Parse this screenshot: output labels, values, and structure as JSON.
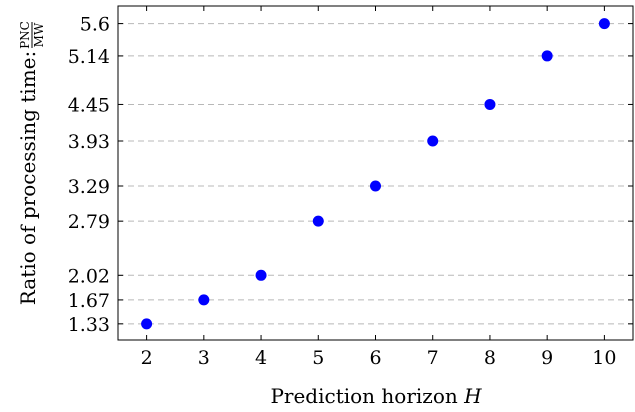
{
  "chart_data": {
    "type": "scatter",
    "x": [
      2,
      3,
      4,
      5,
      6,
      7,
      8,
      9,
      10
    ],
    "y": [
      1.33,
      1.67,
      2.02,
      2.79,
      3.29,
      3.93,
      4.45,
      5.14,
      5.6
    ],
    "xticks": [
      "2",
      "3",
      "4",
      "5",
      "6",
      "7",
      "8",
      "9",
      "10"
    ],
    "yticks": [
      "1.33",
      "1.67",
      "2.02",
      "2.79",
      "3.29",
      "3.93",
      "4.45",
      "5.14",
      "5.6"
    ],
    "xlabel": "Prediction horizon",
    "xlabel_var": "H",
    "ylabel": "Ratio of processing time:",
    "ylabel_frac_num": "PNC",
    "ylabel_frac_den": "MW",
    "xlim": [
      1.5,
      10.5
    ],
    "ylim": [
      1.1,
      5.85
    ],
    "grid": "horizontal dashed",
    "marker_color": "#0000ff"
  }
}
